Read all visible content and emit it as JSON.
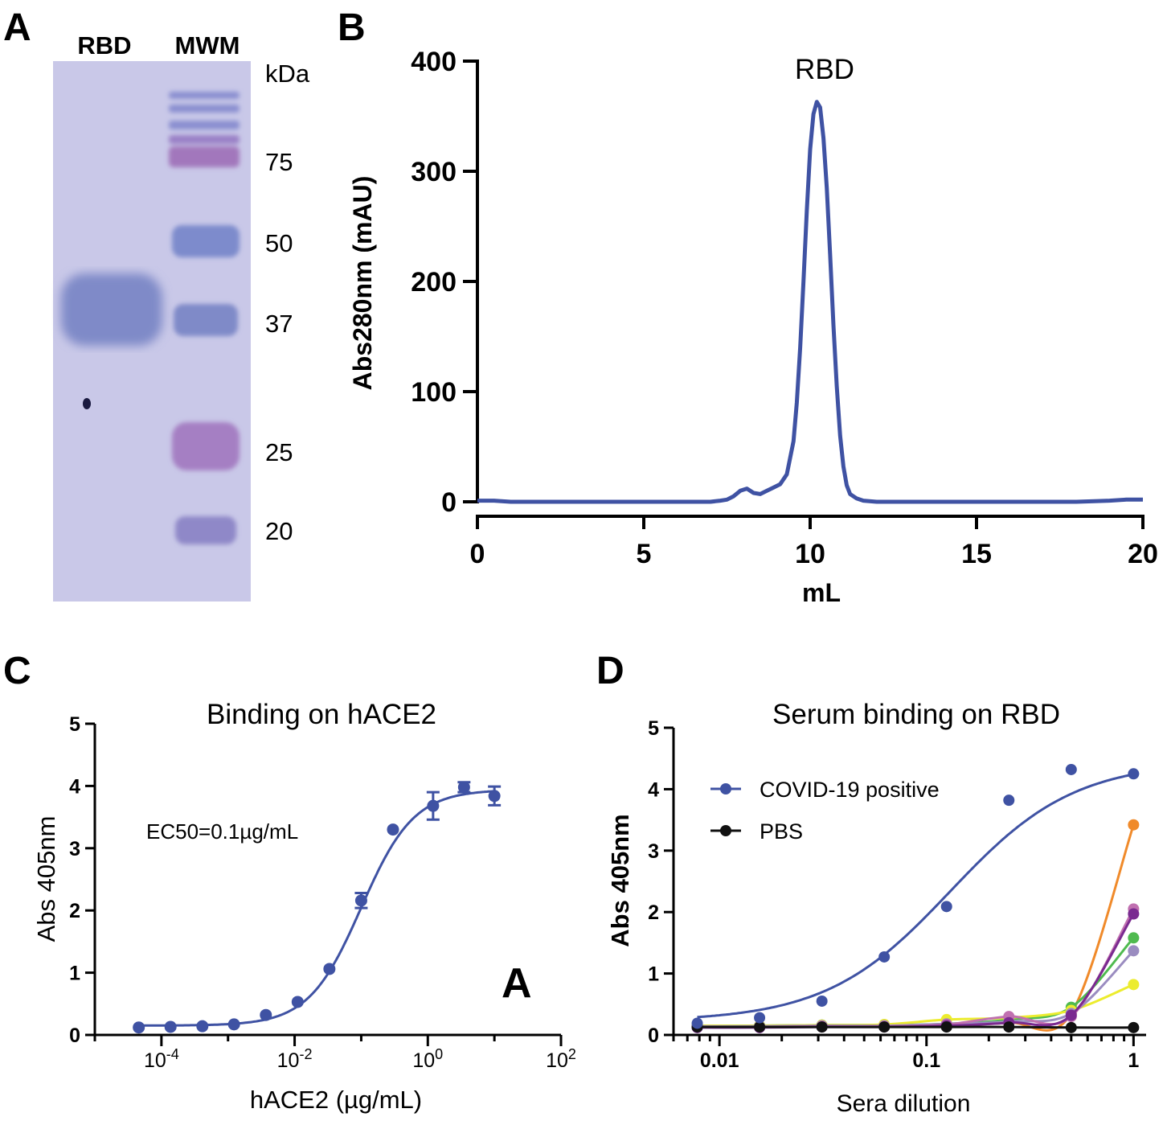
{
  "panels": {
    "A": {
      "letter": "A",
      "lane_labels": [
        "RBD",
        "MWM"
      ],
      "unit_label": "kDa",
      "marker_labels": [
        "75",
        "50",
        "37",
        "25",
        "20"
      ]
    },
    "B": {
      "letter": "B"
    },
    "C": {
      "letter": "C",
      "annotation": "EC50=0.1µg/mL",
      "watermark": "A"
    },
    "D": {
      "letter": "D"
    }
  },
  "colors": {
    "blue": "#3f52a3",
    "black": "#111111",
    "orange": "#f08a2a",
    "green": "#4fba4f",
    "yellow": "#ecec2e",
    "purple": "#7a2a90",
    "lavender": "#9a8cc0",
    "pink": "#c070b0",
    "gel_bg": "#c9c8e8",
    "gel_band": "#7f8ac8"
  },
  "chart_data": [
    {
      "id": "B",
      "type": "line",
      "title": "RBD",
      "xlabel": "mL",
      "ylabel": "Abs280nm (mAU)",
      "xlim": [
        0,
        20
      ],
      "ylim": [
        0,
        400
      ],
      "xticks": [
        "0",
        "5",
        "10",
        "15",
        "20"
      ],
      "yticks": [
        "0",
        "100",
        "200",
        "300",
        "400"
      ],
      "series": [
        {
          "x": [
            0,
            0.5,
            1,
            2,
            3,
            4,
            5,
            6,
            6.5,
            7,
            7.3,
            7.5,
            7.7,
            7.9,
            8.1,
            8.3,
            8.5,
            8.7,
            8.9,
            9.1,
            9.3,
            9.5,
            9.6,
            9.7,
            9.8,
            9.9,
            10.0,
            10.1,
            10.2,
            10.3,
            10.4,
            10.5,
            10.6,
            10.7,
            10.8,
            10.9,
            11.0,
            11.1,
            11.2,
            11.4,
            11.6,
            12,
            13,
            14,
            15,
            16,
            17,
            18,
            19,
            19.5,
            20
          ],
          "y": [
            1,
            1,
            0,
            0,
            0,
            0,
            0,
            0,
            0,
            0,
            1,
            2,
            5,
            10,
            12,
            8,
            7,
            10,
            13,
            16,
            25,
            55,
            90,
            140,
            200,
            265,
            320,
            352,
            363,
            358,
            330,
            285,
            225,
            160,
            105,
            60,
            32,
            15,
            7,
            3,
            1,
            0,
            0,
            0,
            0,
            0,
            0,
            0,
            1,
            2,
            2
          ]
        }
      ]
    },
    {
      "id": "C",
      "type": "scatter",
      "title": "Binding on hACE2",
      "xlabel": "hACE2 (µg/mL)",
      "ylabel": "Abs 405nm",
      "xscale": "log",
      "xlim": [
        1e-05,
        100
      ],
      "ylim": [
        0,
        5
      ],
      "xticks": [
        {
          "base": "10",
          "exp": "-4"
        },
        {
          "base": "10",
          "exp": "-2"
        },
        {
          "base": "10",
          "exp": "0"
        },
        {
          "base": "10",
          "exp": "2"
        }
      ],
      "yticks": [
        "0",
        "1",
        "2",
        "3",
        "4",
        "5"
      ],
      "series": [
        {
          "x": [
            4.57e-05,
            0.000137,
            0.000412,
            0.00123,
            0.0037,
            0.0111,
            0.0333,
            0.1,
            0.3,
            1.2,
            3.5,
            10
          ],
          "y": [
            0.12,
            0.13,
            0.14,
            0.17,
            0.32,
            0.53,
            1.06,
            2.16,
            3.3,
            3.68,
            3.98,
            3.84
          ],
          "err": [
            0,
            0,
            0,
            0,
            0,
            0,
            0,
            0.12,
            0,
            0.22,
            0.08,
            0.15
          ],
          "fit": {
            "bottom": 0.15,
            "top": 3.94,
            "ec50": 0.1,
            "hill": 1.1
          }
        }
      ]
    },
    {
      "id": "D",
      "type": "scatter",
      "title": "Serum binding on RBD",
      "xlabel": "Sera dilution",
      "ylabel": "Abs 405nm",
      "xscale": "log",
      "xlim": [
        0.006,
        1.15
      ],
      "ylim": [
        0,
        5
      ],
      "xticks": [
        "0.01",
        "0.1",
        "1"
      ],
      "yticks": [
        "0",
        "1",
        "2",
        "3",
        "4",
        "5"
      ],
      "legend": {
        "position": "top-left",
        "entries": [
          "COVID-19 positive",
          "PBS"
        ]
      },
      "x": [
        0.0078125,
        0.015625,
        0.03125,
        0.0625,
        0.125,
        0.25,
        0.5,
        1
      ],
      "series": [
        {
          "name": "COVID-19 positive",
          "color": "blue",
          "y": [
            0.19,
            0.28,
            0.55,
            1.27,
            2.09,
            3.82,
            4.32,
            4.25
          ],
          "fit": {
            "bottom": 0.22,
            "top": 4.45,
            "ec50": 0.13,
            "hill": 1.45
          }
        },
        {
          "name": "PBS",
          "color": "black",
          "y": [
            0.13,
            0.13,
            0.13,
            0.13,
            0.13,
            0.13,
            0.12,
            0.12
          ]
        },
        {
          "color": "orange",
          "y": [
            0.14,
            0.14,
            0.15,
            0.15,
            0.16,
            0.2,
            0.35,
            3.42
          ]
        },
        {
          "color": "green",
          "y": [
            0.15,
            0.15,
            0.16,
            0.16,
            0.18,
            0.25,
            0.45,
            1.58
          ]
        },
        {
          "color": "yellow",
          "y": [
            0.15,
            0.15,
            0.16,
            0.17,
            0.25,
            0.28,
            0.4,
            0.82
          ]
        },
        {
          "color": "lavender",
          "y": [
            0.14,
            0.14,
            0.15,
            0.15,
            0.18,
            0.22,
            0.35,
            1.37
          ]
        },
        {
          "color": "pink",
          "y": [
            0.13,
            0.13,
            0.14,
            0.14,
            0.17,
            0.3,
            0.3,
            2.05
          ]
        },
        {
          "color": "purple",
          "y": [
            0.12,
            0.12,
            0.13,
            0.13,
            0.15,
            0.2,
            0.32,
            1.97
          ]
        }
      ]
    }
  ]
}
